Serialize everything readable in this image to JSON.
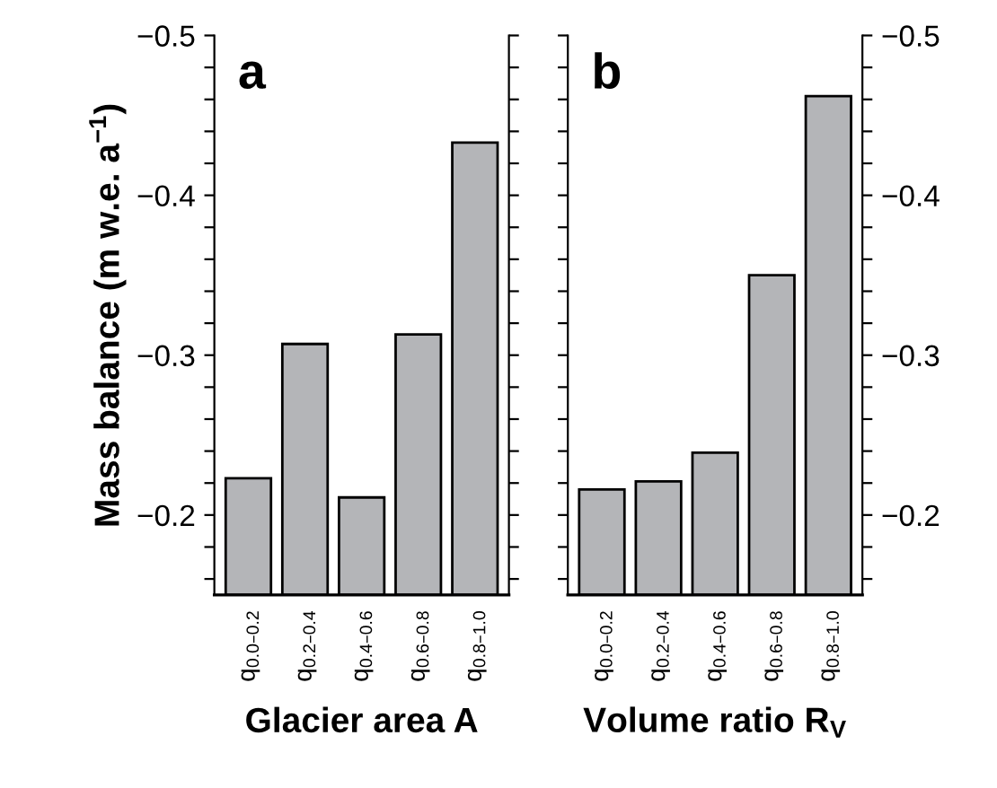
{
  "chart_data": [
    {
      "type": "bar",
      "title": "a",
      "xlabel": "Glacier area A",
      "ylabel": "Mass balance (m w.e. a$^{−1}$)",
      "categories": [
        "q$_{0.0–0.2}$",
        "q$_{0.2–0.4}$",
        "q$_{0.4–0.6}$",
        "q$_{0.6–0.8}$",
        "q$_{0.8–1.0}$"
      ],
      "values": [
        -0.223,
        -0.307,
        -0.211,
        -0.313,
        -0.433
      ],
      "color": "#b4b5b8",
      "ylim": [
        -0.15,
        -0.5
      ],
      "yticks": [
        {
          "value": -0.16,
          "label": null
        },
        {
          "value": -0.18,
          "label": null
        },
        -0.2,
        {
          "value": -0.22,
          "label": null
        },
        {
          "value": -0.24,
          "label": null
        },
        {
          "value": -0.26,
          "label": null
        },
        {
          "value": -0.28,
          "label": null
        },
        -0.3,
        {
          "value": -0.32,
          "label": null
        },
        {
          "value": -0.34,
          "label": null
        },
        {
          "value": -0.36,
          "label": null
        },
        {
          "value": -0.38,
          "label": null
        },
        -0.4,
        {
          "value": -0.42,
          "label": null
        },
        {
          "value": -0.44,
          "label": null
        },
        {
          "value": -0.46,
          "label": null
        },
        {
          "value": -0.48,
          "label": null
        },
        -0.5
      ],
      "grid": false
    },
    {
      "type": "bar",
      "title": "b",
      "xlabel": "Volume ratio R$_{V}$",
      "categories": [
        "q$_{0.0–0.2}$",
        "q$_{0.2–0.4}$",
        "q$_{0.4–0.6}$",
        "q$_{0.6–0.8}$",
        "q$_{0.8–1.0}$"
      ],
      "series": [
        {
          "values": [
            -0.216,
            -0.221,
            -0.239,
            -0.35,
            -0.462
          ],
          "color": "#b4b5b8",
          "axis": "y2"
        }
      ],
      "y2lim": [
        -0.15,
        -0.5
      ],
      "y2ticks": [
        {
          "value": -0.16,
          "label": null
        },
        {
          "value": -0.18,
          "label": null
        },
        -0.2,
        {
          "value": -0.22,
          "label": null
        },
        {
          "value": -0.24,
          "label": null
        },
        {
          "value": -0.26,
          "label": null
        },
        {
          "value": -0.28,
          "label": null
        },
        -0.3,
        {
          "value": -0.32,
          "label": null
        },
        {
          "value": -0.34,
          "label": null
        },
        {
          "value": -0.36,
          "label": null
        },
        {
          "value": -0.38,
          "label": null
        },
        -0.4,
        {
          "value": -0.42,
          "label": null
        },
        {
          "value": -0.44,
          "label": null
        },
        {
          "value": -0.46,
          "label": null
        },
        {
          "value": -0.48,
          "label": null
        },
        -0.5
      ],
      "grid": false
    }
  ]
}
